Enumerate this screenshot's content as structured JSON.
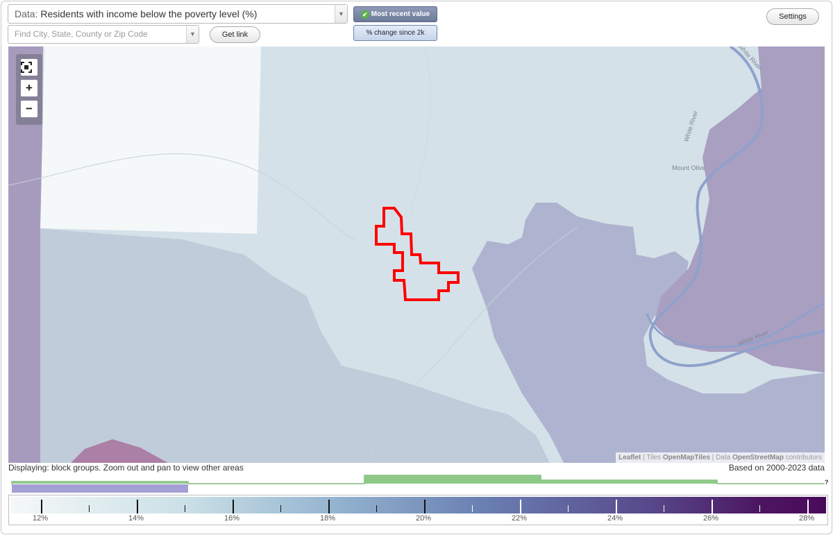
{
  "toolbar": {
    "data_prefix": "Data:",
    "data_value": "Residents with income below the poverty level (%)",
    "search_placeholder": "Find City, State, County or Zip Code",
    "get_link": "Get link",
    "most_recent": "Most recent value",
    "pct_change": "% change since 2k",
    "settings": "Settings"
  },
  "map": {
    "labels": {
      "mount_olive": "Mount Olive",
      "white_river_1": "White River",
      "white_river_2": "White River",
      "white_river_3": "White River"
    },
    "attribution": {
      "leaflet": "Leaflet",
      "tiles_prefix": "| Tiles",
      "tiles": "OpenMapTiles",
      "data_prefix": "| Data",
      "osm": "OpenStreetMap",
      "suffix": "contributors"
    },
    "zoom_out_symbol": "−",
    "zoom_in_symbol": "+"
  },
  "footer": {
    "display_note": "Displaying: block groups. Zoom out and pan to view other areas",
    "based_on": "Based on 2000-2023 data",
    "unknown_mark": "?"
  },
  "legend": {
    "labels": [
      "12%",
      "14%",
      "16%",
      "18%",
      "20%",
      "22%",
      "24%",
      "26%",
      "28%"
    ],
    "colors": {
      "low": "#f5f8f8",
      "mid": "#6a7fb2",
      "high": "#4a0a5a"
    }
  },
  "colors": {
    "highlight": "#ff0000",
    "histogram": "#8ec98a",
    "selected_band": "#a49fd4"
  }
}
